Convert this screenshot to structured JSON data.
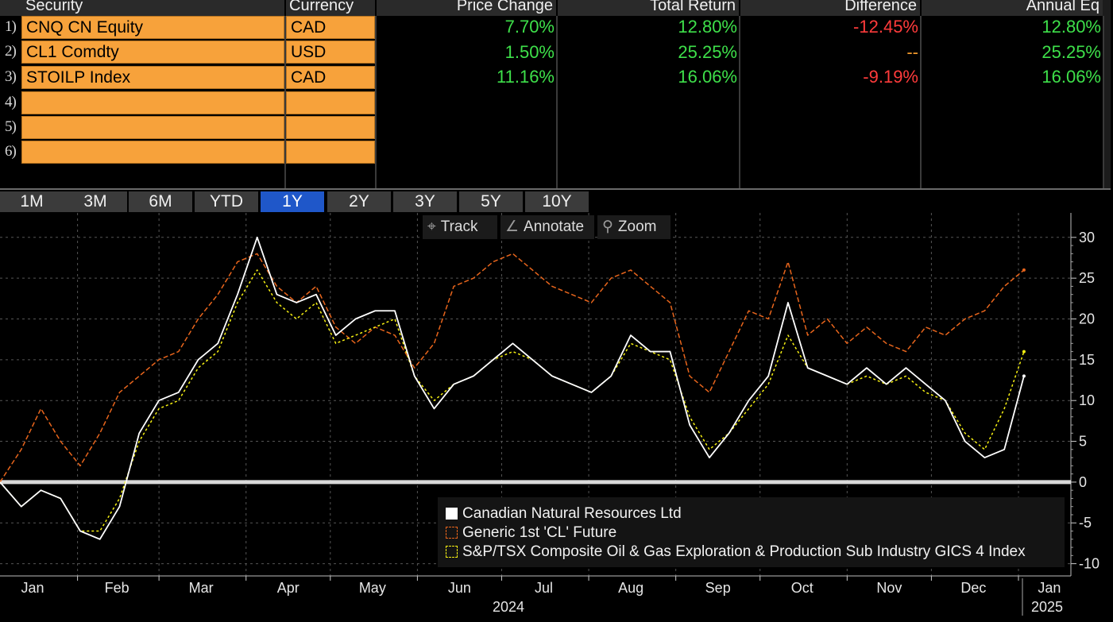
{
  "table": {
    "headers": {
      "security": "Security",
      "currency": "Currency",
      "price_change": "Price Change",
      "total_return": "Total Return",
      "difference": "Difference",
      "annual_eq": "Annual Eq"
    },
    "rows": [
      {
        "num": "1)",
        "security": "CNQ CN Equity",
        "currency": "CAD",
        "price_change": "7.70%",
        "total_return": "12.80%",
        "difference": "-12.45%",
        "annual_eq": "12.80%"
      },
      {
        "num": "2)",
        "security": "CL1 Comdty",
        "currency": "USD",
        "price_change": "1.50%",
        "total_return": "25.25%",
        "difference": "--",
        "annual_eq": "25.25%"
      },
      {
        "num": "3)",
        "security": "STOILP Index",
        "currency": "CAD",
        "price_change": "11.16%",
        "total_return": "16.06%",
        "difference": "-9.19%",
        "annual_eq": "16.06%"
      },
      {
        "num": "4)",
        "security": "",
        "currency": ""
      },
      {
        "num": "5)",
        "security": "",
        "currency": ""
      },
      {
        "num": "6)",
        "security": "",
        "currency": ""
      }
    ],
    "colors": {
      "positive": "#3ee04a",
      "negative": "#ff3b3b",
      "dash": "#f39a2b",
      "input_bg": "#f7a23b"
    }
  },
  "periods": {
    "items": [
      "1M",
      "3M",
      "6M",
      "YTD",
      "1Y",
      "2Y",
      "3Y",
      "5Y",
      "10Y"
    ],
    "active": "1Y",
    "active_color": "#1f57c9"
  },
  "chart_tools": {
    "track": "Track",
    "annotate": "Annotate",
    "zoom": "Zoom",
    "icons": [
      "crosshair-icon",
      "pencil-icon",
      "magnifier-icon"
    ]
  },
  "legend": {
    "items": [
      {
        "label": "Canadian Natural Resources Ltd",
        "color": "#ffffff",
        "style": "solid"
      },
      {
        "label": "Generic 1st 'CL' Future",
        "color": "#e8651c",
        "style": "dashed"
      },
      {
        "label": "S&P/TSX Composite Oil & Gas Exploration & Production Sub Industry GICS 4 Index",
        "color": "#f6f012",
        "style": "dotted"
      }
    ]
  },
  "chart_data": {
    "type": "line",
    "x": [
      "2024-01-01",
      "2024-01-08",
      "2024-01-15",
      "2024-01-22",
      "2024-01-29",
      "2024-02-05",
      "2024-02-12",
      "2024-02-19",
      "2024-02-26",
      "2024-03-04",
      "2024-03-11",
      "2024-03-18",
      "2024-03-25",
      "2024-04-01",
      "2024-04-08",
      "2024-04-15",
      "2024-04-22",
      "2024-04-29",
      "2024-05-06",
      "2024-05-13",
      "2024-05-20",
      "2024-05-27",
      "2024-06-03",
      "2024-06-10",
      "2024-06-17",
      "2024-06-24",
      "2024-07-01",
      "2024-07-08",
      "2024-07-15",
      "2024-07-22",
      "2024-07-29",
      "2024-08-05",
      "2024-08-12",
      "2024-08-19",
      "2024-08-26",
      "2024-09-02",
      "2024-09-09",
      "2024-09-16",
      "2024-09-23",
      "2024-09-30",
      "2024-10-07",
      "2024-10-14",
      "2024-10-21",
      "2024-10-28",
      "2024-11-04",
      "2024-11-11",
      "2024-11-18",
      "2024-11-25",
      "2024-12-02",
      "2024-12-09",
      "2024-12-16",
      "2024-12-23",
      "2024-12-30"
    ],
    "series": [
      {
        "name": "Canadian Natural Resources Ltd",
        "color": "#ffffff",
        "dash": "solid",
        "values": [
          0,
          -3,
          -1,
          -2,
          -6,
          -7,
          -3,
          6,
          10,
          11,
          15,
          17,
          23,
          30,
          23,
          22,
          23,
          18,
          20,
          21,
          21,
          13,
          9,
          12,
          13,
          15,
          17,
          15,
          13,
          12,
          11,
          13,
          18,
          16,
          16,
          7,
          3,
          6,
          10,
          13,
          22,
          14,
          13,
          12,
          14,
          12,
          14,
          12,
          10,
          5,
          3,
          4,
          13
        ]
      },
      {
        "name": "Generic 1st 'CL' Future",
        "color": "#e8651c",
        "dash": "dashed",
        "values": [
          0,
          4,
          9,
          5,
          2,
          6,
          11,
          13,
          15,
          16,
          20,
          23,
          27,
          28,
          24,
          22,
          24,
          19,
          17,
          19,
          18,
          14,
          17,
          24,
          25,
          27,
          28,
          26,
          24,
          23,
          22,
          25,
          26,
          24,
          22,
          13,
          11,
          16,
          21,
          20,
          27,
          18,
          20,
          17,
          19,
          17,
          16,
          19,
          18,
          20,
          21,
          24,
          26
        ]
      },
      {
        "name": "S&P/TSX Composite Oil & Gas Exploration & Production Sub Industry GICS 4 Index",
        "color": "#f6f012",
        "dash": "dotted",
        "values": [
          0,
          -3,
          -1,
          -2,
          -6,
          -6,
          -2,
          5,
          9,
          10,
          14,
          16,
          22,
          26,
          22,
          20,
          22,
          17,
          18,
          19,
          20,
          13,
          10,
          12,
          13,
          15,
          16,
          15,
          13,
          12,
          11,
          13,
          17,
          16,
          15,
          8,
          4,
          6,
          9,
          12,
          18,
          14,
          13,
          12,
          13,
          12,
          13,
          11,
          10,
          6,
          4,
          9,
          16
        ]
      }
    ],
    "x_ticks": [
      "Jan",
      "Feb",
      "Mar",
      "Apr",
      "May",
      "Jun",
      "Jul",
      "Aug",
      "Sep",
      "Oct",
      "Nov",
      "Dec",
      "Jan"
    ],
    "x_year_labels": [
      "2024",
      "2025"
    ],
    "y_ticks": [
      30,
      25,
      20,
      15,
      10,
      5,
      0,
      -5,
      -10
    ],
    "ylim": [
      -11.5,
      33
    ],
    "xlabel": "",
    "ylabel": "",
    "grid": true,
    "baseline_zero": true,
    "legend_position": "bottom-right"
  }
}
